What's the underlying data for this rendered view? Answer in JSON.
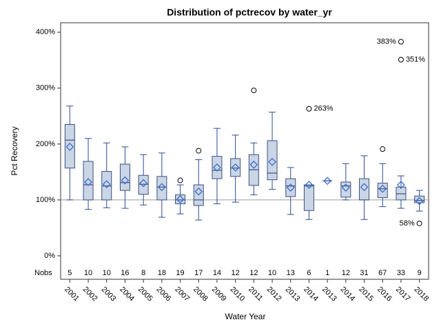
{
  "chart_data": {
    "type": "box",
    "title": "Distribution of pctrecov by water_yr",
    "xlabel": "Water Year",
    "ylabel": "Pct Recovery",
    "categories": [
      "2001",
      "2002",
      "2003",
      "2004",
      "2005",
      "2006",
      "2007",
      "2008",
      "2009",
      "2010",
      "2011",
      "2012",
      "2013",
      "2014",
      "2013",
      "2014",
      "2015",
      "2016",
      "2017",
      "2018"
    ],
    "nobs_label": "Nobs",
    "nobs": [
      5,
      10,
      10,
      16,
      8,
      18,
      19,
      17,
      14,
      12,
      12,
      10,
      13,
      6,
      1,
      12,
      31,
      67,
      33,
      9
    ],
    "boxes": [
      {
        "min": 100,
        "q1": 157,
        "median": 207,
        "q3": 235,
        "max": 268,
        "mean": 195
      },
      {
        "min": 83,
        "q1": 100,
        "median": 127,
        "q3": 169,
        "max": 210,
        "mean": 132
      },
      {
        "min": 86,
        "q1": 100,
        "median": 125,
        "q3": 151,
        "max": 202,
        "mean": 128
      },
      {
        "min": 85,
        "q1": 117,
        "median": 131,
        "q3": 164,
        "max": 195,
        "mean": 135
      },
      {
        "min": 91,
        "q1": 110,
        "median": 128,
        "q3": 144,
        "max": 181,
        "mean": 130
      },
      {
        "min": 69,
        "q1": 100,
        "median": 123,
        "q3": 142,
        "max": 184,
        "mean": 123
      },
      {
        "min": 75,
        "q1": 93,
        "median": 100,
        "q3": 109,
        "max": 127,
        "mean": 101,
        "outliers": [
          135
        ]
      },
      {
        "min": 64,
        "q1": 90,
        "median": 100,
        "q3": 127,
        "max": 172,
        "mean": 115,
        "outliers": [
          188
        ]
      },
      {
        "min": 93,
        "q1": 138,
        "median": 153,
        "q3": 178,
        "max": 228,
        "mean": 158
      },
      {
        "min": 96,
        "q1": 142,
        "median": 157,
        "q3": 174,
        "max": 216,
        "mean": 158
      },
      {
        "min": 109,
        "q1": 126,
        "median": 154,
        "q3": 181,
        "max": 202,
        "mean": 163,
        "outliers": [
          296
        ]
      },
      {
        "min": 119,
        "q1": 136,
        "median": 148,
        "q3": 206,
        "max": 257,
        "mean": 168
      },
      {
        "min": 74,
        "q1": 106,
        "median": 125,
        "q3": 138,
        "max": 158,
        "mean": 122
      },
      {
        "min": 65,
        "q1": 81,
        "median": 125,
        "q3": 127,
        "max": 127,
        "mean": 127,
        "outliers": [
          263
        ],
        "outlier_labels": [
          "263%"
        ]
      },
      {
        "min": 134,
        "q1": 134,
        "median": 134,
        "q3": 134,
        "max": 134,
        "mean": 134
      },
      {
        "min": 100,
        "q1": 105,
        "median": 125,
        "q3": 132,
        "max": 165,
        "mean": 122
      },
      {
        "min": 65,
        "q1": 100,
        "median": 100,
        "q3": 138,
        "max": 179,
        "mean": 123
      },
      {
        "min": 88,
        "q1": 104,
        "median": 120,
        "q3": 130,
        "max": 165,
        "mean": 120,
        "outliers": [
          191
        ]
      },
      {
        "min": 85,
        "q1": 100,
        "median": 111,
        "q3": 123,
        "max": 143,
        "mean": 127,
        "outliers": [
          383,
          351
        ],
        "outlier_labels": [
          "383%",
          "351%"
        ]
      },
      {
        "min": 80,
        "q1": 95,
        "median": 99,
        "q3": 107,
        "max": 117,
        "mean": 98,
        "outliers": [
          58
        ],
        "outlier_labels": [
          "58%"
        ]
      }
    ],
    "reference_line": 100,
    "ylim": [
      -42,
      417
    ],
    "yticks": [
      {
        "value": 0,
        "label": "0%"
      },
      {
        "value": 100,
        "label": "100%"
      },
      {
        "value": 200,
        "label": "200%"
      },
      {
        "value": 300,
        "label": "300%"
      },
      {
        "value": 400,
        "label": "400%"
      }
    ],
    "box_color": "#cad5e5",
    "box_edge_color": "#3a4f7c",
    "whisker_color": "#2a4a95",
    "mean_color": "#3b6ccc",
    "outlier_color": "#000000"
  }
}
